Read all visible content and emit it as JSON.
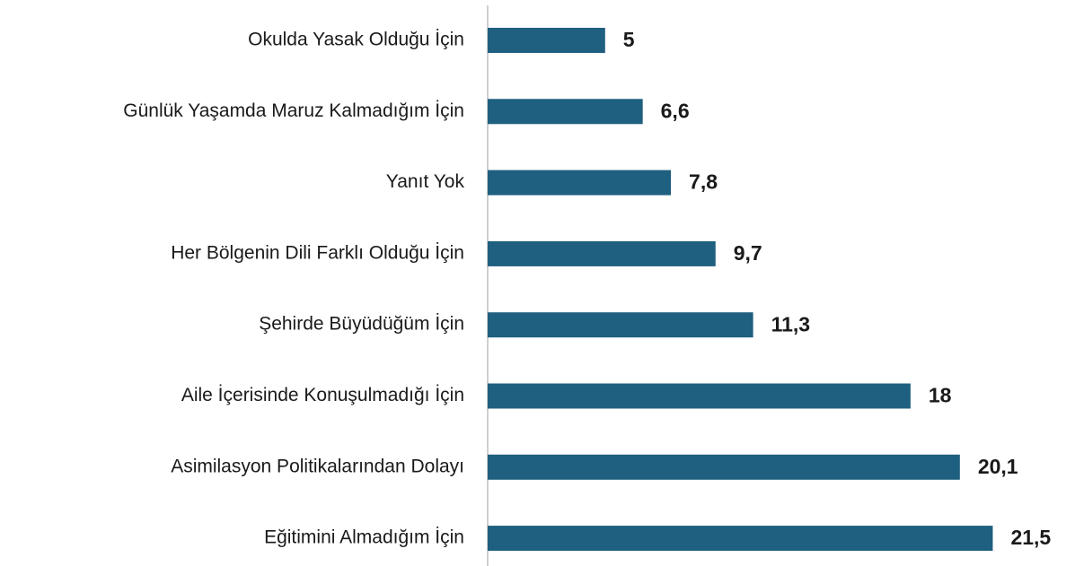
{
  "chart_data": {
    "type": "bar",
    "orientation": "horizontal",
    "categories": [
      "Okulda Yasak Olduğu İçin",
      "Günlük Yaşamda Maruz Kalmadığım İçin",
      "Yanıt Yok",
      "Her Bölgenin Dili Farklı Olduğu İçin",
      "Şehirde Büyüdüğüm İçin",
      "Aile İçerisinde Konuşulmadığı İçin",
      "Asimilasyon Politikalarından Dolayı",
      "Eğitimini Almadığım İçin"
    ],
    "values": [
      5,
      6.6,
      7.8,
      9.7,
      11.3,
      18,
      20.1,
      21.5
    ],
    "value_labels": [
      "5",
      "6,6",
      "7,8",
      "9,7",
      "11,3",
      "18",
      "20,1",
      "21,5"
    ],
    "color": "#1f5f7f",
    "xlim": [
      0,
      25
    ]
  }
}
